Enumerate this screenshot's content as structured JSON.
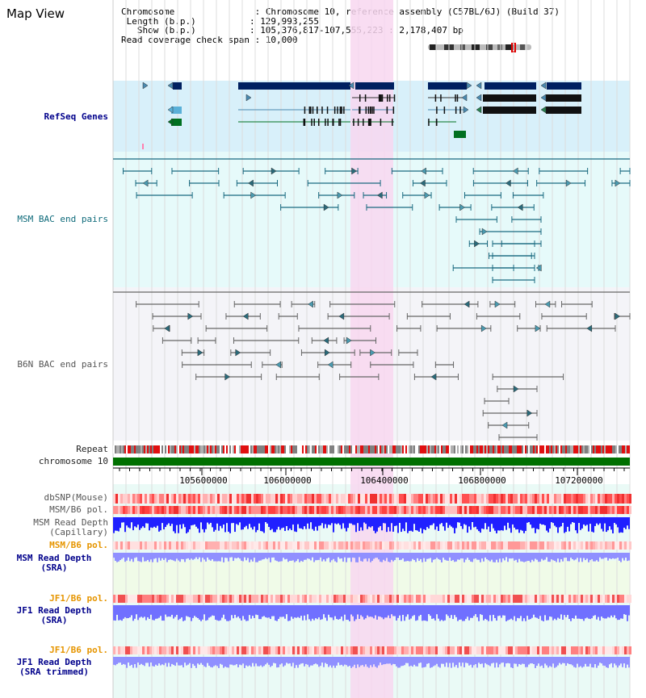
{
  "page": {
    "title": "Map View"
  },
  "info": {
    "chromosome_label": "Chromosome",
    "chromosome_value": "Chromosome 10, reference assembly (C57BL/6J) (Build 37)",
    "length_label": "Length (b.p.)",
    "length_value": "129,993,255",
    "show_label": "Show (b.p.)",
    "show_value": "105,376,817-107,555,223 : 2,178,407 bp",
    "coverage_label": "Read coverage check span",
    "coverage_value": "10,000"
  },
  "track_labels": {
    "refseq": "RefSeq Genes",
    "msm_bac": "MSM BAC end pairs",
    "b6n_bac": "B6N BAC end pairs",
    "repeat": "Repeat",
    "chromosome": "chromosome 10",
    "dbsnp": "dbSNP(Mouse)",
    "msm_b6_pol_1": "MSM/B6 pol.",
    "msm_depth_cap_1": "MSM Read Depth",
    "msm_depth_cap_2": "(Capillary)",
    "msm_b6_pol_2": "MSM/B6 pol.",
    "msm_depth_sra_1": "MSM Read Depth",
    "msm_depth_sra_2": "(SRA)",
    "jf1_b6_pol_1": "JF1/B6 pol.",
    "jf1_depth_sra_1": "JF1 Read Depth",
    "jf1_depth_sra_2": "(SRA)",
    "jf1_b6_pol_2": "JF1/B6 pol.",
    "jf1_depth_trim_1": "JF1 Read Depth",
    "jf1_depth_trim_2": "(SRA trimmed)"
  },
  "axis": {
    "ticks": [
      "105600000",
      "106000000",
      "106400000",
      "106800000",
      "107200000"
    ]
  },
  "colors": {
    "highlight": "#f8d7f0",
    "refseq_bg": "#d8f0fa",
    "msm_bac_bg": "#e6fafa",
    "b6n_bac_bg": "#f4f4f8",
    "chromosome_bar": "#007000",
    "gene_dark": "#002060",
    "msm_depth": "#2020ff",
    "sra_depth": "#9090ff"
  },
  "icons": [
    "ideogram-icon"
  ]
}
